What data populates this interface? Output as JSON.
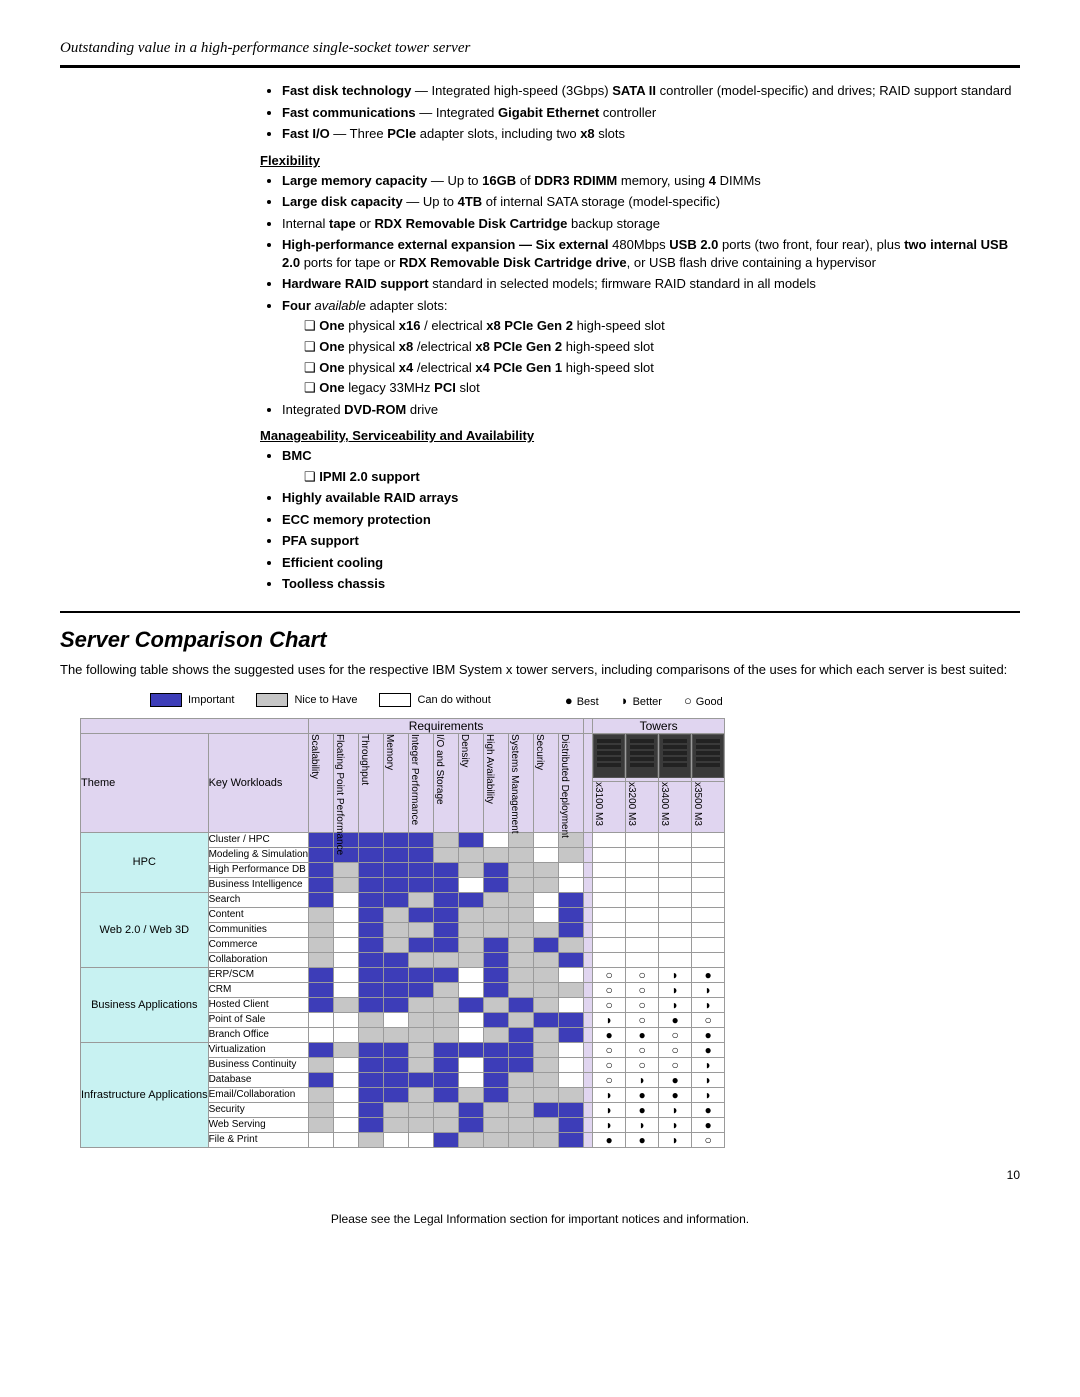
{
  "tagline": "Outstanding value in a high-performance single-socket tower server",
  "features": {
    "fast": [
      "<b>Fast disk technology</b> — Integrated high-speed (3Gbps) <b>SATA II</b> controller (model-specific) and drives; RAID support standard",
      "<b>Fast communications</b> — Integrated <b>Gigabit Ethernet</b> controller",
      "<b>Fast I/O</b> — Three <b>PCIe</b> adapter slots, including two <b>x8</b> slots"
    ],
    "flex_head": "Flexibility",
    "flex": [
      "<b>Large memory capacity</b> — Up to <b>16GB</b> of <b>DDR3 RDIMM</b> memory, using <b>4</b> DIMMs",
      "<b>Large disk capacity</b> — Up to <b>4TB</b> of internal SATA storage (model-specific)",
      "Internal <b>tape</b> or <b>RDX Removable Disk Cartridge</b> backup storage",
      "<b>High-performance external expansion — Six external</b> 480Mbps <b>USB 2.0</b> ports (two front, four rear), plus <b>two internal USB 2.0</b> ports for tape or <b>RDX Removable Disk Cartridge drive</b>, or USB flash drive containing a hypervisor",
      "<b>Hardware RAID support</b> standard in selected models; firmware RAID standard in all models",
      "<b>Four</b> <i>available</i> adapter slots:"
    ],
    "slots": [
      "<b>One</b> physical <b>x16</b> / electrical <b>x8 PCIe Gen 2</b> high-speed slot",
      "<b>One</b> physical <b>x8</b> /electrical <b>x8 PCIe Gen 2</b> high-speed slot",
      "<b>One</b> physical <b>x4</b> /electrical <b>x4 PCIe Gen 1</b> high-speed slot",
      "<b>One</b> legacy 33MHz <b>PCI</b> slot"
    ],
    "flex_tail": "Integrated <b>DVD-ROM</b> drive",
    "mgmt_head": "Manageability, Serviceability and Availability",
    "mgmt": [
      "BMC",
      "Highly available RAID arrays",
      "ECC memory protection",
      "PFA support",
      "Efficient cooling",
      "Toolless chassis"
    ],
    "bmc_sub": "IPMI 2.0 support"
  },
  "section_title": "Server Comparison Chart",
  "intro": "The following table shows the suggested uses for the respective IBM System x tower servers, including comparisons of the uses for which each server is best suited:",
  "legend": {
    "important": "Important",
    "nice": "Nice to Have",
    "can": "Can do without",
    "best": "Best",
    "better": "Better",
    "good": "Good",
    "best_sym": "●",
    "better_sym": "◗",
    "good_sym": "○"
  },
  "chart": {
    "req_group": "Requirements",
    "tow_group": "Towers",
    "theme_label": "Theme",
    "kw_label": "Key Workloads",
    "req_cols": [
      "Scalability",
      "Floating Point Performance",
      "Throughput",
      "Memory",
      "Integer Performance",
      "I/O and Storage",
      "Density",
      "High Availability",
      "Systems Management",
      "Security",
      "Distributed Deployment"
    ],
    "tower_cols": [
      "x3100 M3",
      "x3200 M3",
      "x3400 M3",
      "x3500 M3"
    ],
    "colors": {
      "i": "#3d3db8",
      "n": "#c6c6c6",
      "c": "#ffffff",
      "theme_bg": "#c8f2f2",
      "bg": "#e0d5f0"
    },
    "themes": [
      {
        "name": "HPC",
        "rows": [
          {
            "kw": "Cluster / HPC",
            "req": [
              "i",
              "i",
              "i",
              "i",
              "i",
              "n",
              "i",
              "c",
              "n",
              "c",
              "n"
            ],
            "tow": [
              "",
              "",
              "",
              ""
            ]
          },
          {
            "kw": "Modeling & Simulation",
            "req": [
              "i",
              "i",
              "i",
              "i",
              "i",
              "n",
              "n",
              "n",
              "n",
              "c",
              "n"
            ],
            "tow": [
              "",
              "",
              "",
              ""
            ]
          },
          {
            "kw": "High Performance DB",
            "req": [
              "i",
              "n",
              "i",
              "i",
              "i",
              "i",
              "n",
              "i",
              "n",
              "n",
              "c"
            ],
            "tow": [
              "",
              "",
              "",
              ""
            ]
          },
          {
            "kw": "Business Intelligence",
            "req": [
              "i",
              "n",
              "i",
              "i",
              "i",
              "i",
              "c",
              "i",
              "n",
              "n",
              "c"
            ],
            "tow": [
              "",
              "",
              "",
              ""
            ]
          }
        ]
      },
      {
        "name": "Web 2.0 / Web 3D",
        "rows": [
          {
            "kw": "Search",
            "req": [
              "i",
              "c",
              "i",
              "i",
              "n",
              "i",
              "i",
              "n",
              "n",
              "c",
              "i"
            ],
            "tow": [
              "",
              "",
              "",
              ""
            ]
          },
          {
            "kw": "Content",
            "req": [
              "n",
              "c",
              "i",
              "n",
              "i",
              "i",
              "n",
              "n",
              "n",
              "c",
              "i"
            ],
            "tow": [
              "",
              "",
              "",
              ""
            ]
          },
          {
            "kw": "Communities",
            "req": [
              "n",
              "c",
              "i",
              "n",
              "n",
              "i",
              "n",
              "n",
              "n",
              "n",
              "i"
            ],
            "tow": [
              "",
              "",
              "",
              ""
            ]
          },
          {
            "kw": "Commerce",
            "req": [
              "n",
              "c",
              "i",
              "n",
              "i",
              "i",
              "n",
              "i",
              "n",
              "i",
              "n"
            ],
            "tow": [
              "",
              "",
              "",
              ""
            ]
          },
          {
            "kw": "Collaboration",
            "req": [
              "n",
              "c",
              "i",
              "i",
              "n",
              "n",
              "n",
              "i",
              "n",
              "n",
              "i"
            ],
            "tow": [
              "",
              "",
              "",
              ""
            ]
          }
        ]
      },
      {
        "name": "Business Applications",
        "rows": [
          {
            "kw": "ERP/SCM",
            "req": [
              "i",
              "c",
              "i",
              "i",
              "i",
              "i",
              "c",
              "i",
              "n",
              "n",
              "c"
            ],
            "tow": [
              "○",
              "○",
              "◗",
              "●"
            ]
          },
          {
            "kw": "CRM",
            "req": [
              "i",
              "c",
              "i",
              "i",
              "i",
              "n",
              "c",
              "i",
              "n",
              "n",
              "n"
            ],
            "tow": [
              "○",
              "○",
              "◗",
              "◗"
            ]
          },
          {
            "kw": "Hosted Client",
            "req": [
              "i",
              "n",
              "i",
              "i",
              "n",
              "n",
              "i",
              "n",
              "i",
              "n",
              "c"
            ],
            "tow": [
              "○",
              "○",
              "◗",
              "◗"
            ]
          },
          {
            "kw": "Point of Sale",
            "req": [
              "c",
              "c",
              "n",
              "c",
              "n",
              "n",
              "c",
              "i",
              "n",
              "i",
              "i"
            ],
            "tow": [
              "◗",
              "○",
              "●",
              "○"
            ]
          },
          {
            "kw": "Branch Office",
            "req": [
              "c",
              "c",
              "n",
              "n",
              "n",
              "n",
              "c",
              "n",
              "i",
              "n",
              "i"
            ],
            "tow": [
              "●",
              "●",
              "○",
              "●"
            ]
          }
        ]
      },
      {
        "name": "Infrastructure Applications",
        "rows": [
          {
            "kw": "Virtualization",
            "req": [
              "i",
              "n",
              "i",
              "i",
              "n",
              "i",
              "i",
              "i",
              "i",
              "n",
              "c"
            ],
            "tow": [
              "○",
              "○",
              "○",
              "●"
            ]
          },
          {
            "kw": "Business Continuity",
            "req": [
              "n",
              "c",
              "i",
              "i",
              "n",
              "i",
              "c",
              "i",
              "i",
              "n",
              "c"
            ],
            "tow": [
              "○",
              "○",
              "○",
              "◗"
            ]
          },
          {
            "kw": "Database",
            "req": [
              "i",
              "c",
              "i",
              "i",
              "i",
              "i",
              "c",
              "i",
              "n",
              "n",
              "c"
            ],
            "tow": [
              "○",
              "◗",
              "●",
              "◗"
            ]
          },
          {
            "kw": "Email/Collaboration",
            "req": [
              "n",
              "c",
              "i",
              "i",
              "n",
              "i",
              "n",
              "i",
              "n",
              "n",
              "n"
            ],
            "tow": [
              "◗",
              "●",
              "●",
              "◗"
            ]
          },
          {
            "kw": "Security",
            "req": [
              "n",
              "c",
              "i",
              "n",
              "n",
              "n",
              "i",
              "n",
              "n",
              "i",
              "i"
            ],
            "tow": [
              "◗",
              "●",
              "◗",
              "●"
            ]
          },
          {
            "kw": "Web Serving",
            "req": [
              "n",
              "c",
              "i",
              "n",
              "n",
              "n",
              "i",
              "n",
              "n",
              "n",
              "i"
            ],
            "tow": [
              "◗",
              "◗",
              "◗",
              "●"
            ]
          },
          {
            "kw": "File & Print",
            "req": [
              "c",
              "c",
              "n",
              "c",
              "c",
              "i",
              "n",
              "n",
              "n",
              "n",
              "i"
            ],
            "tow": [
              "●",
              "●",
              "◗",
              "○"
            ]
          }
        ]
      }
    ]
  },
  "page_num": "10",
  "footer": "Please see the Legal Information section for important notices and information."
}
